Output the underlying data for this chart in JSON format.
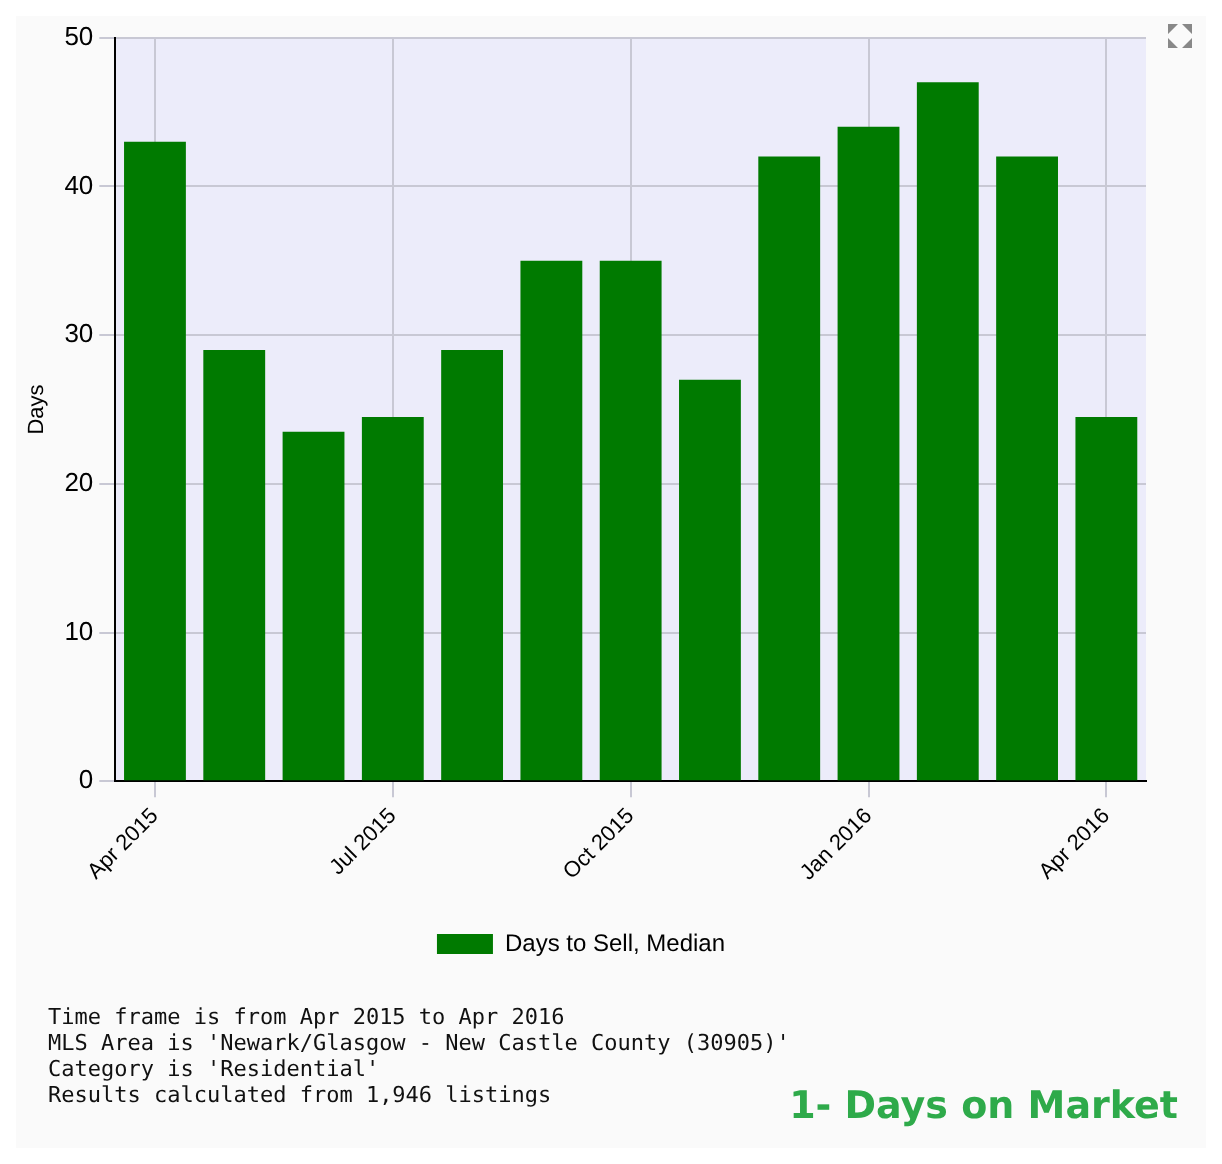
{
  "chart_data": {
    "type": "bar",
    "title": "1- Days on Market",
    "ylabel": "Days",
    "categories": [
      "Apr 2015",
      null,
      null,
      "Jul 2015",
      null,
      null,
      "Oct 2015",
      null,
      null,
      "Jan 2016",
      null,
      null,
      "Apr 2016"
    ],
    "series": [
      {
        "name": "Days to Sell, Median",
        "color": "#007a00",
        "values": [
          43,
          29,
          23.5,
          24.5,
          29,
          35,
          35,
          27,
          42,
          44,
          47,
          42,
          24.5
        ]
      }
    ],
    "ylim": [
      0,
      50
    ],
    "yticks": [
      0,
      10,
      20,
      30,
      40,
      50
    ],
    "grid": true,
    "legend": "bottom",
    "annotations": [
      "Time frame is from Apr 2015 to Apr 2016",
      "MLS Area is 'Newark/Glasgow - New Castle County (30905)'",
      "Category is 'Residential'",
      "Results calculated from 1,946 listings"
    ]
  }
}
